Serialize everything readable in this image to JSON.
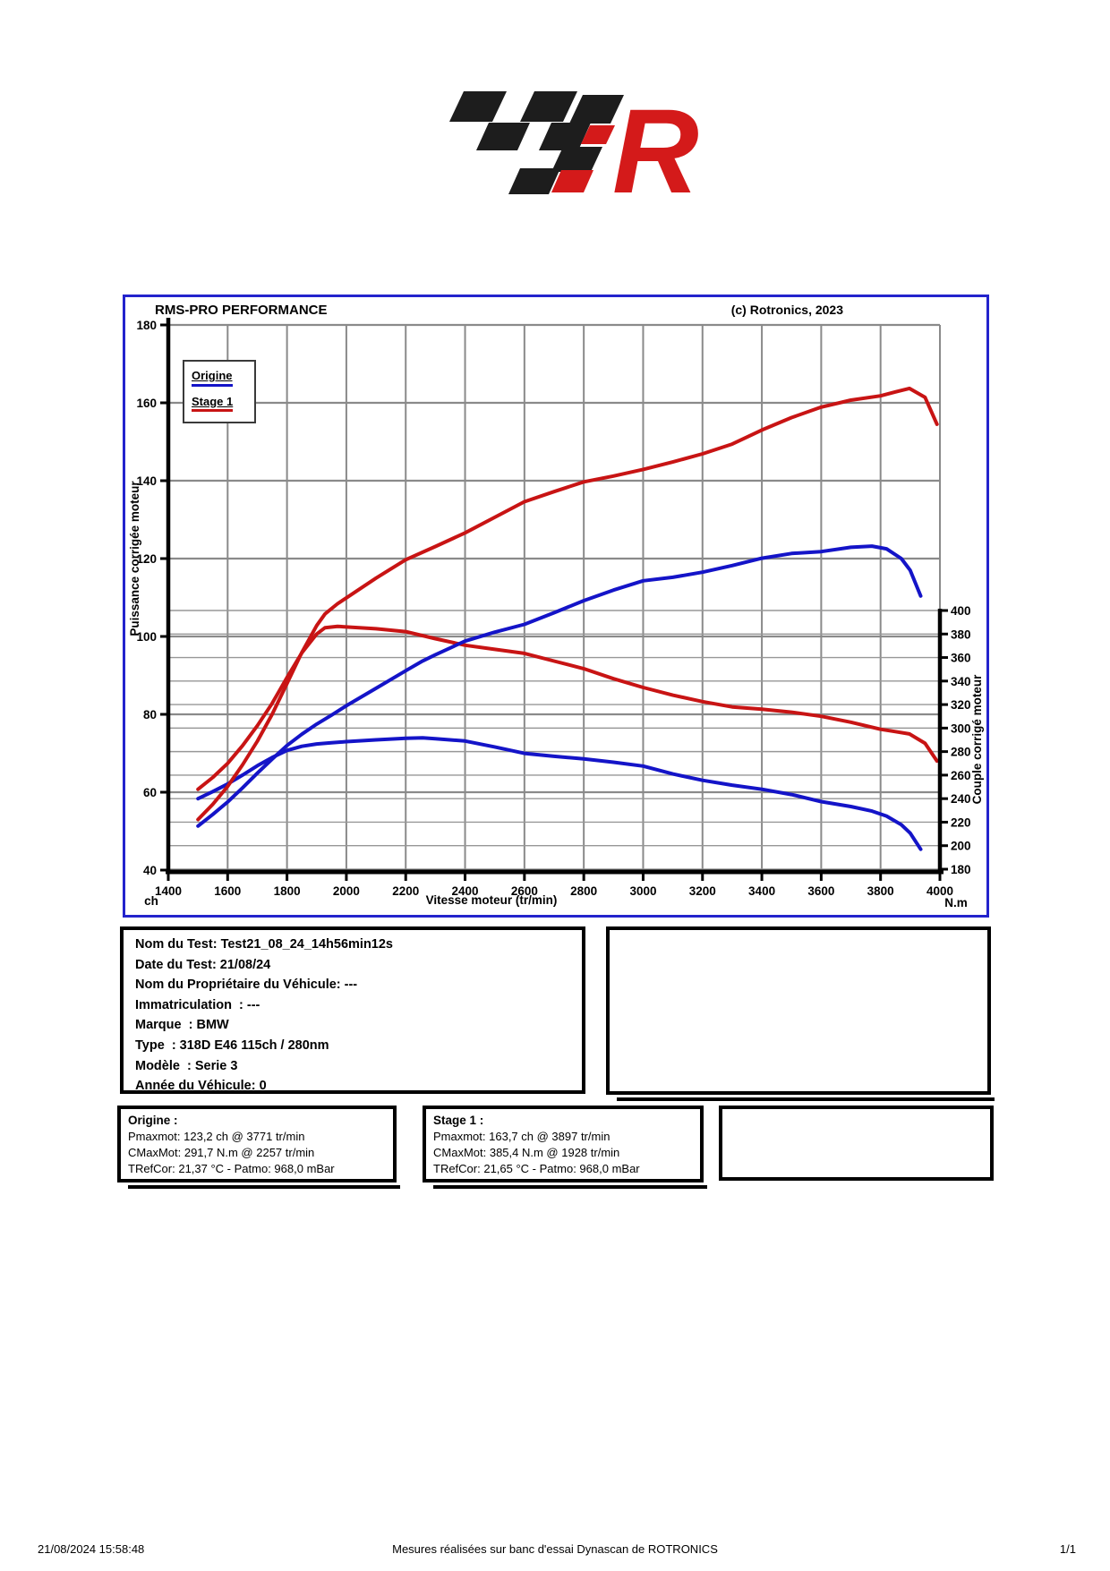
{
  "logo": {
    "letter": "R"
  },
  "colors": {
    "blue": "#1414c8",
    "red": "#c81414",
    "logo_red": "#d41a1a",
    "logo_black": "#1d1d1d",
    "chart_border": "#2323cc",
    "grid": "#8a8a8a",
    "grid_minor": "#979797"
  },
  "chart": {
    "title_left": "RMS-PRO PERFORMANCE",
    "title_right": "(c) Rotronics, 2023",
    "x_label": "Vitesse moteur (tr/min)",
    "left_unit": "ch",
    "right_unit": "N.m",
    "y_left_label": "Puissance corrigée moteur",
    "y_right_label": "Couple corrigé moteur",
    "x_range": [
      1400,
      4000
    ],
    "y_left_range": [
      40,
      180
    ],
    "y_right_range": [
      180,
      400
    ],
    "x_ticks": [
      1400,
      1600,
      1800,
      2000,
      2200,
      2400,
      2600,
      2800,
      3000,
      3200,
      3400,
      3600,
      3800,
      4000
    ],
    "y_left_ticks": [
      180,
      160,
      140,
      120,
      100,
      80,
      60,
      40
    ],
    "y_right_ticks": [
      400,
      380,
      360,
      340,
      320,
      300,
      280,
      260,
      240,
      220,
      200,
      180
    ],
    "legend": [
      {
        "label": "Origine",
        "color_key": "blue"
      },
      {
        "label": "Stage 1",
        "color_key": "red"
      }
    ]
  },
  "chart_data": {
    "type": "line",
    "title": "RMS-PRO PERFORMANCE",
    "xlabel": "Vitesse moteur (tr/min)",
    "ylabel_left": "Puissance corrigée moteur (ch)",
    "ylabel_right": "Couple corrigé moteur (N.m)",
    "x_range": [
      1400,
      4000
    ],
    "y_left_range": [
      40,
      180
    ],
    "y_right_range": [
      180,
      400
    ],
    "grid": true,
    "legend_position": "top-left",
    "peaks": {
      "origine": {
        "pmax_ch": 123.2,
        "pmax_rpm": 3771,
        "cmax_nm": 291.7,
        "cmax_rpm": 2257
      },
      "stage1": {
        "pmax_ch": 163.7,
        "pmax_rpm": 3897,
        "cmax_nm": 385.4,
        "cmax_rpm": 1928
      }
    },
    "series": [
      {
        "id": "origine-couple",
        "name": "Origine - Couple (N.m)",
        "color_key": "blue",
        "axis": "right",
        "points": [
          [
            1500,
            240
          ],
          [
            1550,
            246
          ],
          [
            1600,
            252.5
          ],
          [
            1650,
            260
          ],
          [
            1700,
            268
          ],
          [
            1750,
            275
          ],
          [
            1800,
            281
          ],
          [
            1850,
            284.5
          ],
          [
            1900,
            286.5
          ],
          [
            1950,
            287.5
          ],
          [
            2000,
            288.5
          ],
          [
            2100,
            290
          ],
          [
            2200,
            291.3
          ],
          [
            2257,
            291.7
          ],
          [
            2300,
            291
          ],
          [
            2400,
            289
          ],
          [
            2500,
            284
          ],
          [
            2600,
            278.5
          ],
          [
            2700,
            276
          ],
          [
            2800,
            273.8
          ],
          [
            2900,
            271
          ],
          [
            3000,
            267.7
          ],
          [
            3100,
            261
          ],
          [
            3200,
            255.6
          ],
          [
            3300,
            251.5
          ],
          [
            3400,
            248
          ],
          [
            3500,
            243.5
          ],
          [
            3600,
            237.5
          ],
          [
            3700,
            233.3
          ],
          [
            3771,
            229.4
          ],
          [
            3820,
            225.2
          ],
          [
            3870,
            217.8
          ],
          [
            3900,
            210.7
          ],
          [
            3935,
            197
          ]
        ]
      },
      {
        "id": "stage1-couple",
        "name": "Stage 1 - Couple (N.m)",
        "color_key": "red",
        "axis": "right",
        "points": [
          [
            1500,
            248
          ],
          [
            1550,
            258
          ],
          [
            1600,
            270
          ],
          [
            1650,
            285
          ],
          [
            1700,
            302
          ],
          [
            1750,
            321
          ],
          [
            1800,
            343
          ],
          [
            1850,
            364
          ],
          [
            1900,
            380
          ],
          [
            1928,
            385.4
          ],
          [
            1970,
            386.5
          ],
          [
            2000,
            386
          ],
          [
            2100,
            384.5
          ],
          [
            2200,
            382
          ],
          [
            2300,
            376
          ],
          [
            2400,
            370.5
          ],
          [
            2500,
            367
          ],
          [
            2600,
            363.5
          ],
          [
            2700,
            357
          ],
          [
            2800,
            350.5
          ],
          [
            2900,
            342
          ],
          [
            3000,
            334.5
          ],
          [
            3100,
            328
          ],
          [
            3200,
            322.5
          ],
          [
            3300,
            318
          ],
          [
            3400,
            316
          ],
          [
            3500,
            313.5
          ],
          [
            3600,
            310
          ],
          [
            3700,
            305
          ],
          [
            3800,
            299
          ],
          [
            3850,
            297
          ],
          [
            3897,
            295
          ],
          [
            3950,
            287
          ],
          [
            3990,
            272
          ]
        ]
      },
      {
        "id": "origine-puissance",
        "name": "Origine - Puissance (ch)",
        "color_key": "blue",
        "axis": "left",
        "points": [
          [
            1500,
            51.3
          ],
          [
            1550,
            54.3
          ],
          [
            1600,
            57.5
          ],
          [
            1650,
            61.1
          ],
          [
            1700,
            64.9
          ],
          [
            1750,
            68.5
          ],
          [
            1800,
            72.0
          ],
          [
            1850,
            74.9
          ],
          [
            1900,
            77.5
          ],
          [
            1950,
            79.8
          ],
          [
            2000,
            82.2
          ],
          [
            2100,
            86.7
          ],
          [
            2200,
            91.2
          ],
          [
            2257,
            93.7
          ],
          [
            2300,
            95.3
          ],
          [
            2400,
            98.8
          ],
          [
            2500,
            101.1
          ],
          [
            2600,
            103.1
          ],
          [
            2700,
            106.1
          ],
          [
            2800,
            109.2
          ],
          [
            2900,
            111.9
          ],
          [
            3000,
            114.3
          ],
          [
            3100,
            115.2
          ],
          [
            3200,
            116.5
          ],
          [
            3300,
            118.2
          ],
          [
            3400,
            120.1
          ],
          [
            3500,
            121.3
          ],
          [
            3600,
            121.8
          ],
          [
            3700,
            122.9
          ],
          [
            3771,
            123.2
          ],
          [
            3820,
            122.5
          ],
          [
            3870,
            120.0
          ],
          [
            3900,
            117.0
          ],
          [
            3935,
            110.4
          ]
        ]
      },
      {
        "id": "stage1-puissance",
        "name": "Stage 1 - Puissance (ch)",
        "color_key": "red",
        "axis": "left",
        "points": [
          [
            1500,
            53.0
          ],
          [
            1550,
            56.9
          ],
          [
            1600,
            61.5
          ],
          [
            1650,
            67.0
          ],
          [
            1700,
            73.1
          ],
          [
            1750,
            80.0
          ],
          [
            1800,
            87.9
          ],
          [
            1850,
            95.9
          ],
          [
            1900,
            102.8
          ],
          [
            1928,
            105.8
          ],
          [
            1970,
            108.4
          ],
          [
            2000,
            109.9
          ],
          [
            2100,
            115.0
          ],
          [
            2200,
            119.7
          ],
          [
            2300,
            123.1
          ],
          [
            2400,
            126.6
          ],
          [
            2500,
            130.6
          ],
          [
            2600,
            134.6
          ],
          [
            2700,
            137.2
          ],
          [
            2800,
            139.7
          ],
          [
            2900,
            141.2
          ],
          [
            3000,
            142.9
          ],
          [
            3100,
            144.8
          ],
          [
            3200,
            146.9
          ],
          [
            3300,
            149.4
          ],
          [
            3400,
            153.0
          ],
          [
            3500,
            156.2
          ],
          [
            3600,
            158.9
          ],
          [
            3700,
            160.7
          ],
          [
            3800,
            161.8
          ],
          [
            3850,
            162.8
          ],
          [
            3897,
            163.7
          ],
          [
            3950,
            161.4
          ],
          [
            3990,
            154.5
          ]
        ]
      }
    ]
  },
  "test_info": {
    "lines": [
      "Nom du Test: Test21_08_24_14h56min12s",
      "Date du Test: 21/08/24",
      "Nom du Propriétaire du Véhicule: ---",
      "Immatriculation  : ---",
      "Marque  : BMW",
      "Type  : 318D E46 115ch / 280nm",
      "Modèle  : Serie 3",
      "Année du Véhicule: 0"
    ]
  },
  "result_boxes": [
    {
      "title": "Origine :",
      "lines": [
        "Pmaxmot: 123,2 ch @ 3771 tr/min",
        "CMaxMot: 291,7 N.m @ 2257 tr/min",
        "TRefCor: 21,37 °C - Patmo: 968,0 mBar"
      ]
    },
    {
      "title": "Stage 1 :",
      "lines": [
        "Pmaxmot: 163,7 ch @ 3897 tr/min",
        "CMaxMot: 385,4 N.m @ 1928 tr/min",
        "TRefCor: 21,65 °C - Patmo: 968,0 mBar"
      ]
    }
  ],
  "footer": {
    "datetime": "21/08/2024 15:58:48",
    "center": "Mesures réalisées sur banc d'essai Dynascan de ROTRONICS",
    "page": "1/1"
  }
}
